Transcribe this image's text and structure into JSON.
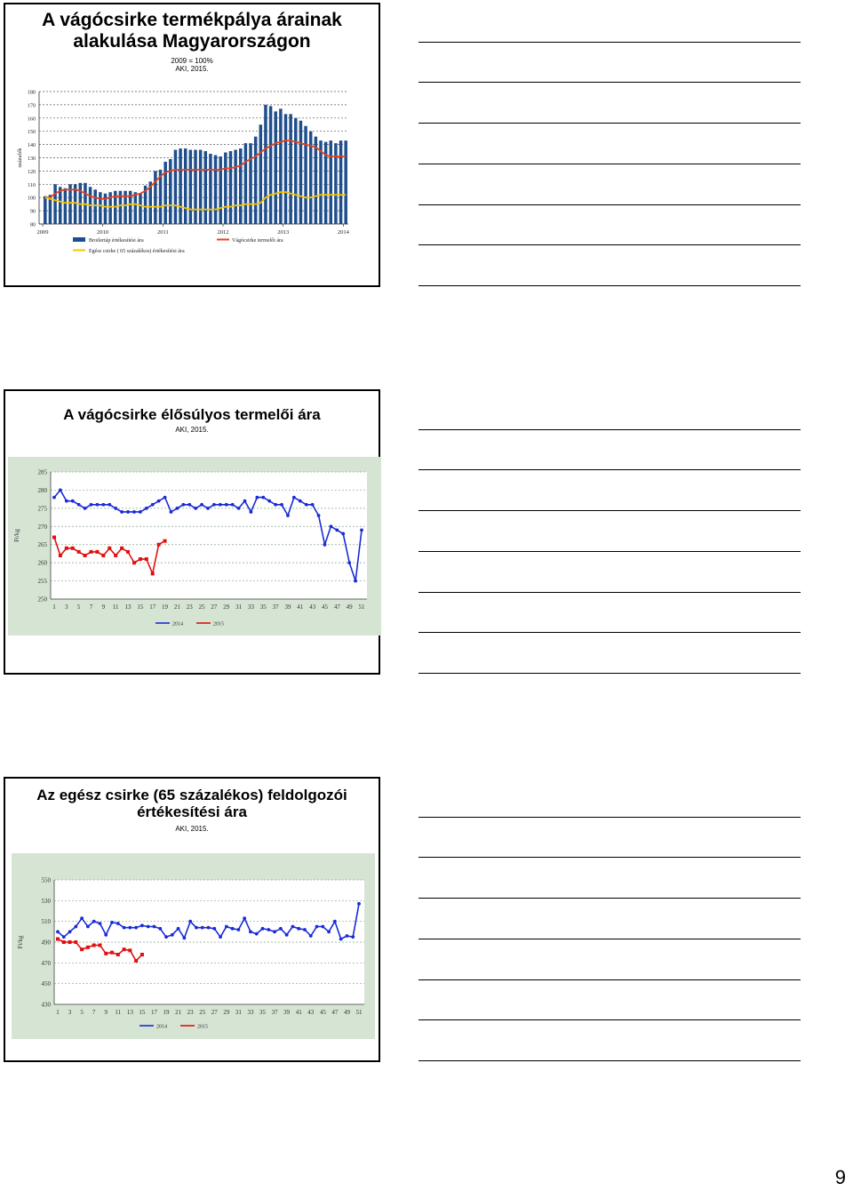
{
  "page_number": "9",
  "slides": [
    {
      "title_lines": [
        "A vágócsirke termékpálya árainak",
        "alakulása Magyarországon"
      ],
      "subtitle_lines": [
        "2009 = 100%",
        "AKI, 2015."
      ]
    },
    {
      "title_lines": [
        "A vágócsirke élősúlyos termelői ára"
      ],
      "subtitle_lines": [
        "AKI, 2015."
      ]
    },
    {
      "title_lines": [
        "Az egész csirke (65 százalékos) feldolgozói",
        "értékesítési ára"
      ],
      "subtitle_lines": [
        "AKI, 2015."
      ]
    }
  ],
  "chart_data": [
    {
      "type": "bar",
      "ylabel": "százalék",
      "ylim": [
        80,
        180
      ],
      "yticks": [
        80,
        90,
        100,
        110,
        120,
        130,
        140,
        150,
        160,
        170,
        180
      ],
      "x_labels": [
        "2009",
        "2010",
        "2011",
        "2012",
        "2013",
        "2014"
      ],
      "legend": [
        "Broilertáp értékesítési ára",
        "Vágócsirke termelői ára",
        "Egész csirke ( 65 százalékos) értékesítési ára"
      ],
      "colors": {
        "bar": "#1f4e8c",
        "line1": "#e8401c",
        "line2": "#f5c400"
      },
      "series": [
        {
          "name": "Broilertáp értékesítési ára",
          "values": [
            101,
            102,
            110,
            108,
            107,
            110,
            110,
            111,
            111,
            108,
            106,
            104,
            103,
            104,
            105,
            105,
            105,
            105,
            104,
            103,
            109,
            112,
            120,
            121,
            127,
            129,
            136,
            137,
            137,
            136,
            136,
            136,
            135,
            133,
            132,
            131,
            134,
            135,
            136,
            137,
            141,
            141,
            146,
            155,
            170,
            169,
            165,
            167,
            163,
            163,
            160,
            158,
            154,
            150,
            146,
            143,
            142,
            143,
            141,
            143,
            143
          ]
        },
        {
          "name": "Vágócsirke termelői ára",
          "values": [
            100,
            100,
            103,
            105,
            106,
            106,
            106,
            105,
            103,
            101,
            100,
            99,
            99,
            100,
            101,
            101,
            101,
            101,
            102,
            103,
            105,
            108,
            112,
            116,
            119,
            120,
            121,
            121,
            121,
            121,
            121,
            121,
            121,
            121,
            121,
            121,
            122,
            122,
            123,
            124,
            127,
            129,
            131,
            134,
            137,
            139,
            141,
            142,
            143,
            143,
            142,
            141,
            140,
            139,
            138,
            135,
            132,
            131,
            131,
            131,
            131
          ]
        },
        {
          "name": "Egész csirke ( 65 százalékos) értékesítési ára",
          "values": [
            100,
            99,
            98,
            97,
            96,
            96,
            96,
            95,
            95,
            94,
            94,
            94,
            93,
            93,
            93,
            94,
            94,
            95,
            95,
            94,
            93,
            93,
            93,
            93,
            94,
            94,
            94,
            93,
            92,
            91,
            91,
            91,
            91,
            91,
            91,
            92,
            93,
            93,
            94,
            94,
            95,
            95,
            95,
            96,
            100,
            102,
            103,
            104,
            104,
            103,
            102,
            101,
            100,
            100,
            101,
            102,
            102,
            102,
            102,
            102,
            102
          ]
        }
      ]
    },
    {
      "type": "line",
      "ylabel": "Ft/kg",
      "ylim": [
        250,
        285
      ],
      "yticks": [
        250,
        255,
        260,
        265,
        270,
        275,
        280,
        285
      ],
      "x_ticks": [
        "1",
        "3",
        "5",
        "7",
        "9",
        "11",
        "13",
        "15",
        "17",
        "19",
        "21",
        "23",
        "25",
        "27",
        "29",
        "31",
        "33",
        "35",
        "37",
        "39",
        "41",
        "43",
        "45",
        "47",
        "49",
        "51"
      ],
      "legend": [
        "2014",
        "2015"
      ],
      "series": [
        {
          "name": "2014",
          "color": "#1a2bd6",
          "values": [
            278,
            280,
            277,
            277,
            276,
            275,
            276,
            276,
            276,
            276,
            275,
            274,
            274,
            274,
            274,
            275,
            276,
            277,
            278,
            274,
            275,
            276,
            276,
            275,
            276,
            275,
            276,
            276,
            276,
            276,
            275,
            277,
            274,
            278,
            278,
            277,
            276,
            276,
            273,
            278,
            277,
            276,
            276,
            273,
            265,
            270,
            269,
            268,
            260,
            255,
            269
          ]
        },
        {
          "name": "2015",
          "color": "#e01010",
          "values": [
            267,
            262,
            264,
            264,
            263,
            262,
            263,
            263,
            262,
            264,
            262,
            264,
            263,
            260,
            261,
            261,
            257,
            265,
            266
          ]
        }
      ]
    },
    {
      "type": "line",
      "ylabel": "Ft/kg",
      "ylim": [
        430,
        550
      ],
      "yticks": [
        430,
        450,
        470,
        490,
        510,
        530,
        550
      ],
      "x_ticks": [
        "1",
        "3",
        "5",
        "7",
        "9",
        "11",
        "13",
        "15",
        "17",
        "19",
        "21",
        "23",
        "25",
        "27",
        "29",
        "31",
        "33",
        "35",
        "37",
        "39",
        "41",
        "43",
        "45",
        "47",
        "49",
        "51"
      ],
      "legend": [
        "2014",
        "2015"
      ],
      "series": [
        {
          "name": "2014",
          "color": "#1a2bd6",
          "values": [
            500,
            495,
            500,
            505,
            513,
            505,
            510,
            508,
            497,
            509,
            508,
            504,
            504,
            504,
            506,
            505,
            505,
            503,
            495,
            497,
            503,
            494,
            510,
            504,
            504,
            504,
            503,
            495,
            505,
            503,
            502,
            513,
            500,
            498,
            503,
            502,
            500,
            503,
            497,
            505,
            503,
            502,
            496,
            505,
            505,
            500,
            510,
            493,
            496,
            495,
            527
          ]
        },
        {
          "name": "2015",
          "color": "#e01010",
          "values": [
            493,
            490,
            490,
            490,
            483,
            485,
            487,
            487,
            479,
            480,
            478,
            483,
            482,
            472,
            478
          ]
        }
      ]
    }
  ]
}
